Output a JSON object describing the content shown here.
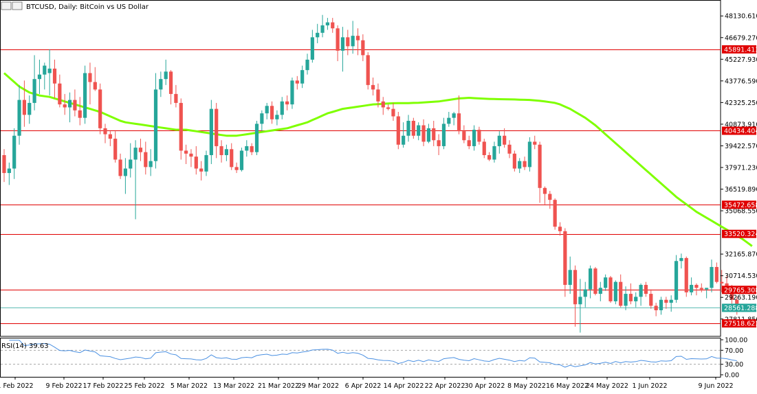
{
  "header": {
    "symbol": "BTCUSD",
    "title": "BTCUSD, Daily:  BitCoin vs US Dollar"
  },
  "indicator": {
    "label": "RSI(14) 39.63",
    "value": 39.63,
    "axis_ticks": [
      "100.00",
      "70.00",
      "30.00",
      "0.00"
    ]
  },
  "colors": {
    "bull": "#26a69a",
    "bear": "#ef5350",
    "ma_fast": "#7fff00",
    "ma_slow": "#ff2fa0",
    "hline": "#e00000",
    "current": "#26a69a",
    "rsi": "#4a90e2",
    "label_bg": "#e00000",
    "label_text": "#ffffff"
  },
  "price_axis": {
    "ticks": [
      "48130.610",
      "46679.270",
      "45227.930",
      "43776.590",
      "42325.250",
      "40873.910",
      "39422.570",
      "37971.230",
      "36519.890",
      "35068.550",
      "32165.870",
      "30714.530",
      "29263.190",
      "27811.850"
    ]
  },
  "time_axis": {
    "labels": [
      "1 Feb 2022",
      "9 Feb 2022",
      "17 Feb 2022",
      "25 Feb 2022",
      "5 Mar 2022",
      "13 Mar 2022",
      "21 Mar 2022",
      "29 Mar 2022",
      "6 Apr 2022",
      "14 Apr 2022",
      "22 Apr 2022",
      "30 Apr 2022",
      "8 May 2022",
      "16 May 2022",
      "24 May 2022",
      "1 Jun 2022",
      "9 Jun 2022"
    ]
  },
  "level_labels": [
    {
      "text": "45891.413",
      "value": 45891.413
    },
    {
      "text": "40434.404",
      "value": 40434.404
    },
    {
      "text": "35472.658",
      "value": 35472.658
    },
    {
      "text": "33520.324",
      "value": 33520.324
    },
    {
      "text": "29765.308",
      "value": 29765.308
    },
    {
      "text": "27518.623",
      "value": 27518.623
    }
  ],
  "current_price": {
    "text": "28561.288",
    "value": 28561.288
  },
  "chart_data": {
    "type": "candlestick",
    "title": "BTCUSD, Daily:  BitCoin vs US Dollar",
    "x_start_date": "2022-01-30",
    "y_axis": {
      "ylim": [
        26650,
        49200
      ]
    },
    "horizontal_levels": [
      45891.413,
      40434.404,
      35472.658,
      33520.324,
      29765.308,
      27518.623
    ],
    "current_price": 28561.288,
    "series": [
      {
        "type": "candlestick",
        "ohlc": [
          [
            38800,
            39200,
            37000,
            37600
          ],
          [
            37600,
            38300,
            36800,
            37900
          ],
          [
            37900,
            40600,
            37200,
            40100
          ],
          [
            40100,
            43500,
            39500,
            42500
          ],
          [
            42500,
            43800,
            40700,
            41500
          ],
          [
            41500,
            42800,
            40900,
            42300
          ],
          [
            42300,
            45500,
            41800,
            43900
          ],
          [
            43900,
            45200,
            42900,
            44200
          ],
          [
            44200,
            45000,
            43200,
            44800
          ],
          [
            44300,
            45900,
            42800,
            44600
          ],
          [
            44600,
            45200,
            42600,
            43600
          ],
          [
            43600,
            44200,
            42000,
            42200
          ],
          [
            42200,
            42900,
            41500,
            42000
          ],
          [
            42000,
            43000,
            41000,
            42500
          ],
          [
            42500,
            43200,
            41400,
            41800
          ],
          [
            41800,
            42700,
            40800,
            41300
          ],
          [
            41300,
            44800,
            40900,
            44300
          ],
          [
            44300,
            45000,
            42200,
            43700
          ],
          [
            43700,
            44700,
            43100,
            43200
          ],
          [
            43200,
            43600,
            40200,
            40600
          ],
          [
            40600,
            40900,
            39600,
            40200
          ],
          [
            40200,
            40400,
            39400,
            39900
          ],
          [
            39900,
            40400,
            38300,
            38500
          ],
          [
            38500,
            38900,
            37200,
            37400
          ],
          [
            37400,
            38600,
            36200,
            37900
          ],
          [
            37900,
            39600,
            37300,
            38500
          ],
          [
            38500,
            39800,
            34500,
            39300
          ],
          [
            39300,
            39900,
            38400,
            39000
          ],
          [
            39000,
            39700,
            37500,
            38000
          ],
          [
            38000,
            39200,
            37400,
            38400
          ],
          [
            38400,
            44300,
            37900,
            43200
          ],
          [
            43200,
            44400,
            42700,
            43900
          ],
          [
            43900,
            45200,
            43500,
            44400
          ],
          [
            44400,
            44500,
            42200,
            42900
          ],
          [
            42900,
            43500,
            42000,
            42300
          ],
          [
            42300,
            42600,
            38500,
            39100
          ],
          [
            39100,
            39500,
            38200,
            38900
          ],
          [
            38900,
            39200,
            38000,
            38700
          ],
          [
            38700,
            39400,
            37500,
            37900
          ],
          [
            37900,
            38400,
            37100,
            37700
          ],
          [
            37700,
            39100,
            37400,
            38800
          ],
          [
            38800,
            42500,
            38200,
            41900
          ],
          [
            41900,
            42300,
            38600,
            39400
          ],
          [
            39400,
            39800,
            38300,
            38800
          ],
          [
            38800,
            39500,
            38400,
            39200
          ],
          [
            39200,
            39600,
            37800,
            38000
          ],
          [
            38000,
            38300,
            37600,
            37800
          ],
          [
            37800,
            39300,
            37700,
            39100
          ],
          [
            39100,
            39800,
            38700,
            39400
          ],
          [
            39400,
            39600,
            38800,
            39000
          ],
          [
            39000,
            41100,
            38800,
            40900
          ],
          [
            40900,
            41800,
            40400,
            41600
          ],
          [
            41600,
            42300,
            41200,
            42100
          ],
          [
            42100,
            42400,
            40900,
            41200
          ],
          [
            41200,
            41800,
            40800,
            41500
          ],
          [
            41500,
            42700,
            41200,
            42400
          ],
          [
            42400,
            42800,
            41800,
            42200
          ],
          [
            42200,
            44000,
            41900,
            43800
          ],
          [
            43800,
            44100,
            43200,
            43600
          ],
          [
            43600,
            44800,
            43300,
            44500
          ],
          [
            44500,
            45600,
            44200,
            45200
          ],
          [
            45200,
            47200,
            45000,
            46700
          ],
          [
            46700,
            47600,
            46300,
            47000
          ],
          [
            47000,
            48200,
            46700,
            47500
          ],
          [
            47500,
            48000,
            47200,
            47700
          ],
          [
            47700,
            48000,
            47000,
            47300
          ],
          [
            47300,
            47500,
            45100,
            45800
          ],
          [
            45800,
            47400,
            44400,
            46700
          ],
          [
            46700,
            47200,
            45500,
            46100
          ],
          [
            46100,
            47800,
            45600,
            46800
          ],
          [
            46800,
            47300,
            45500,
            46500
          ],
          [
            46500,
            46900,
            45100,
            45500
          ],
          [
            45500,
            45700,
            43200,
            43500
          ],
          [
            43500,
            44000,
            42800,
            43200
          ],
          [
            43200,
            43600,
            42000,
            42400
          ],
          [
            42400,
            42700,
            41500,
            42000
          ],
          [
            42000,
            42200,
            41800,
            41900
          ],
          [
            41900,
            42300,
            41100,
            41400
          ],
          [
            41400,
            41700,
            39200,
            39500
          ],
          [
            39500,
            41000,
            39300,
            40100
          ],
          [
            40100,
            41500,
            39700,
            41100
          ],
          [
            41100,
            41300,
            39900,
            40100
          ],
          [
            40100,
            41000,
            39800,
            40800
          ],
          [
            40800,
            41200,
            39400,
            39700
          ],
          [
            39700,
            40900,
            39600,
            40600
          ],
          [
            40600,
            41100,
            39400,
            39800
          ],
          [
            39800,
            40200,
            38800,
            39400
          ],
          [
            39400,
            41300,
            39200,
            40900
          ],
          [
            40900,
            41700,
            40700,
            41300
          ],
          [
            41300,
            41700,
            40800,
            41600
          ],
          [
            41600,
            42800,
            40200,
            40400
          ],
          [
            40400,
            40800,
            39600,
            39800
          ],
          [
            39800,
            40100,
            39200,
            39400
          ],
          [
            39400,
            40800,
            39100,
            40500
          ],
          [
            40500,
            40700,
            39500,
            39700
          ],
          [
            39700,
            39900,
            38600,
            38800
          ],
          [
            38800,
            39000,
            38400,
            38500
          ],
          [
            38500,
            39700,
            38300,
            39400
          ],
          [
            39400,
            40400,
            38900,
            40100
          ],
          [
            40100,
            40600,
            39300,
            39500
          ],
          [
            39500,
            39800,
            38600,
            38900
          ],
          [
            38900,
            39100,
            37700,
            37900
          ],
          [
            37900,
            38600,
            37600,
            38400
          ],
          [
            38400,
            38700,
            37800,
            38000
          ],
          [
            38000,
            40000,
            37700,
            39700
          ],
          [
            39700,
            40100,
            39200,
            39500
          ],
          [
            39500,
            39700,
            35600,
            36600
          ],
          [
            36600,
            36700,
            35500,
            36200
          ],
          [
            36200,
            36400,
            35200,
            35800
          ],
          [
            35800,
            35900,
            33800,
            34000
          ],
          [
            34000,
            34300,
            33400,
            33700
          ],
          [
            33700,
            33900,
            29300,
            30100
          ],
          [
            30100,
            32000,
            29500,
            31100
          ],
          [
            31100,
            31400,
            27300,
            28800
          ],
          [
            28800,
            30500,
            26900,
            29300
          ],
          [
            29300,
            30300,
            28600,
            29800
          ],
          [
            29800,
            31400,
            29200,
            31200
          ],
          [
            31200,
            31300,
            29400,
            29500
          ],
          [
            29500,
            30300,
            29000,
            29900
          ],
          [
            29900,
            30800,
            29700,
            30600
          ],
          [
            30600,
            30700,
            28900,
            29000
          ],
          [
            29000,
            30400,
            28800,
            30300
          ],
          [
            30300,
            30800,
            28600,
            28700
          ],
          [
            28700,
            30000,
            28400,
            29500
          ],
          [
            29500,
            30200,
            28800,
            29000
          ],
          [
            29000,
            29600,
            28600,
            29300
          ],
          [
            29300,
            30200,
            28700,
            30100
          ],
          [
            30100,
            30300,
            29300,
            29500
          ],
          [
            29500,
            29800,
            28500,
            28700
          ],
          [
            28700,
            28900,
            28000,
            28400
          ],
          [
            28400,
            29300,
            28100,
            29100
          ],
          [
            29100,
            29300,
            28500,
            28900
          ],
          [
            28900,
            29400,
            28300,
            29100
          ],
          [
            29100,
            32100,
            28900,
            31700
          ],
          [
            31700,
            32200,
            31200,
            31900
          ],
          [
            31900,
            32000,
            29300,
            29600
          ],
          [
            29600,
            30600,
            29400,
            30100
          ],
          [
            30100,
            30200,
            29400,
            29900
          ],
          [
            29900,
            30200,
            29600,
            29800
          ],
          [
            29800,
            29900,
            29200,
            29900
          ],
          [
            29900,
            31800,
            29600,
            31300
          ],
          [
            31300,
            31600,
            30200,
            30300
          ],
          [
            30300,
            31100,
            29600,
            30200
          ],
          [
            30200,
            30700,
            29800,
            29900
          ],
          [
            29900,
            30100,
            28700,
            29100
          ],
          [
            29100,
            29300,
            28100,
            28561.288
          ]
        ]
      },
      {
        "type": "line",
        "values": [
          44300,
          44000,
          43700,
          43400,
          43200,
          43000,
          42900,
          42800,
          42750,
          42700,
          42600,
          42500,
          42400,
          42300,
          42200,
          42100,
          42000,
          41900,
          41800,
          41700,
          41550,
          41400,
          41250,
          41100,
          41000,
          40950,
          40900,
          40850,
          40800,
          40750,
          40700,
          40650,
          40600,
          40550,
          40500,
          40500,
          40500,
          40450,
          40400,
          40350,
          40300,
          40250,
          40200,
          40150,
          40100,
          40100,
          40100,
          40150,
          40200,
          40250,
          40300,
          40350,
          40400,
          40450,
          40500,
          40550,
          40600,
          40700,
          40800,
          40900,
          41000,
          41150,
          41300,
          41450,
          41600,
          41700,
          41800,
          41900,
          41950,
          42000,
          42050,
          42100,
          42150,
          42200,
          42220,
          42240,
          42260,
          42280,
          42290,
          42290,
          42290,
          42300,
          42310,
          42330,
          42350,
          42380,
          42400,
          42450,
          42500,
          42550,
          42600,
          42620,
          42640,
          42620,
          42600,
          42580,
          42570,
          42560,
          42550,
          42545,
          42540,
          42530,
          42520,
          42510,
          42500,
          42470,
          42440,
          42400,
          42350,
          42300,
          42200,
          42050,
          41900,
          41700,
          41500,
          41300,
          41050,
          40800,
          40500,
          40200,
          39900,
          39600,
          39300,
          39000,
          38700,
          38400,
          38100,
          37800,
          37500,
          37200,
          36900,
          36600,
          36300,
          36000,
          35750,
          35500,
          35250,
          35000,
          34800,
          34600,
          34400,
          34200,
          34000,
          33800,
          33600,
          33400,
          33200,
          32950,
          32700
        ]
      },
      {
        "type": "line",
        "values": [
          "…",
          "…"
        ]
      }
    ]
  }
}
